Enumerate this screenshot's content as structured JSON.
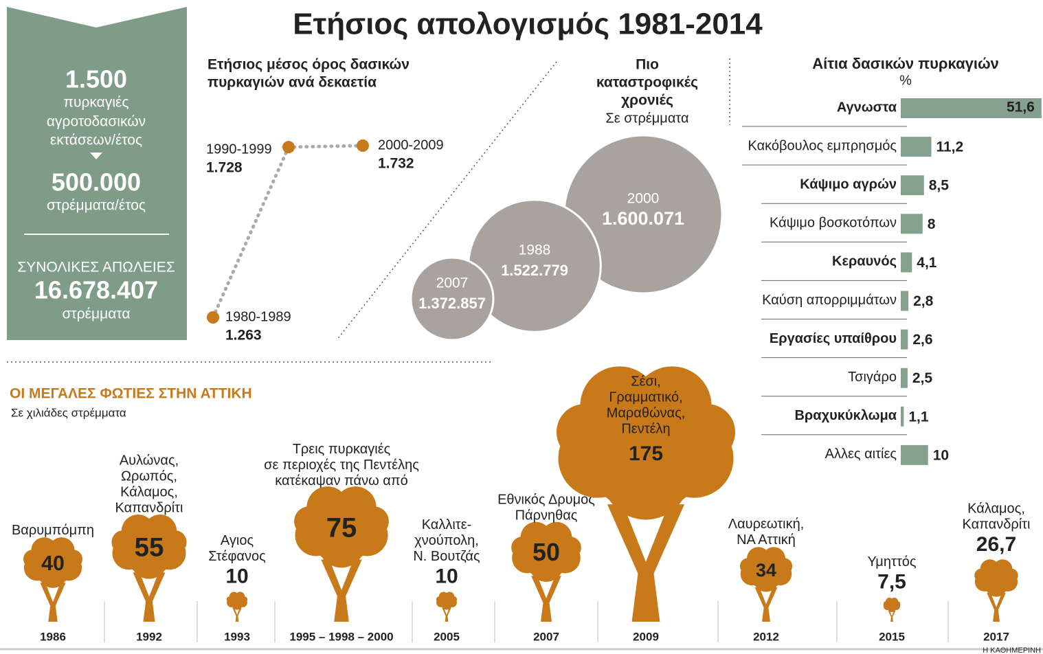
{
  "title": "Ετήσιος απολογισμός 1981-2014",
  "summary": {
    "fires_value": "1.500",
    "fires_text": [
      "πυρκαγιές",
      "αγροτοδασικών",
      "εκτάσεων/έτος"
    ],
    "area_value": "500.000",
    "area_text": "στρέμματα/έτος",
    "losses_title": "ΣΥΝΟΛΙΚΕΣ ΑΠΩΛΕΙΕΣ",
    "losses_value": "16.678.407",
    "losses_unit": "στρέμματα"
  },
  "footer": "Η ΚΑΘΗΜΕΡΙΝΗ",
  "chart_data": [
    {
      "type": "line",
      "title": [
        "Ετήσιος μέσος όρος δασικών",
        "πυρκαγιών ανά δεκαετία"
      ],
      "categories": [
        "1980-1989",
        "1990-1999",
        "2000-2009"
      ],
      "values": [
        1263,
        1728,
        1732
      ],
      "value_labels": [
        "1.263",
        "1.728",
        "1.732"
      ],
      "color": "#c8791a"
    },
    {
      "type": "bubble",
      "title": [
        "Πιο",
        "καταστροφικές",
        "χρονιές"
      ],
      "subtitle": "Σε στρέμματα",
      "categories": [
        "2000",
        "1988",
        "2007"
      ],
      "values": [
        1600071,
        1522779,
        1372857
      ],
      "value_labels": [
        "1.600.071",
        "1.522.779",
        "1.372.857"
      ],
      "color": "#a8a39f"
    },
    {
      "type": "bar",
      "title": "Αίτια δασικών πυρκαγιών",
      "unit": "%",
      "categories": [
        "Αγνωστα",
        "Κακόβουλος εμπρησμός",
        "Κάψιμο αγρών",
        "Κάψιμο βοσκοτόπων",
        "Κεραυνός",
        "Καύση απορριμμάτων",
        "Εργασίες υπαίθρου",
        "Τσιγάρο",
        "Βραχυκύκλωμα",
        "Αλλες αιτίες"
      ],
      "values": [
        51.6,
        11.2,
        8.5,
        8,
        4.1,
        2.8,
        2.6,
        2.5,
        1.1,
        10
      ],
      "value_labels": [
        "51,6",
        "11,2",
        "8,5",
        "8",
        "4,1",
        "2,8",
        "2,6",
        "2,5",
        "1,1",
        "10"
      ],
      "color": "#86a08e"
    },
    {
      "type": "tree",
      "title": "ΟΙ ΜΕΓΑΛΕΣ ΦΩΤΙΕΣ ΣΤΗΝ ΑΤΤΙΚΗ",
      "subtitle": "Σε χιλιάδες στρέμματα",
      "categories": [
        "1986",
        "1992",
        "1993",
        "1995 – 1998 – 2000",
        "2005",
        "2007",
        "2009",
        "2012",
        "2015",
        "2017"
      ],
      "places": [
        [
          "Βαρυμπόμπη"
        ],
        [
          "Αυλώνας,",
          "Ωρωπός,",
          "Κάλαμος,",
          "Καπανδρίτι"
        ],
        [
          "Αγιος",
          "Στέφανος"
        ],
        [
          "Τρεις πυρκαγιές",
          "σε περιοχές της Πεντέλης",
          "κατέκαψαν πάνω από"
        ],
        [
          "Καλλιτε-",
          "χνούπολη,",
          "Ν. Βουτζάς"
        ],
        [
          "Εθνικός Δρυμός",
          "Πάρνηθας"
        ],
        [
          "Σέσι,",
          "Γραμματικό,",
          "Μαραθώνας,",
          "Πεντέλη"
        ],
        [
          "Λαυρεωτική,",
          "ΝΑ Αττική"
        ],
        [
          "Υμηττός"
        ],
        [
          "Κάλαμος,",
          "Καπανδρίτι"
        ]
      ],
      "values": [
        40,
        55,
        10,
        75,
        10,
        50,
        175,
        34,
        7.5,
        26.7
      ],
      "value_labels": [
        "40",
        "55",
        "10",
        "75",
        "10",
        "50",
        "175",
        "34",
        "7,5",
        "26,7"
      ],
      "color": "#c8791a"
    }
  ]
}
